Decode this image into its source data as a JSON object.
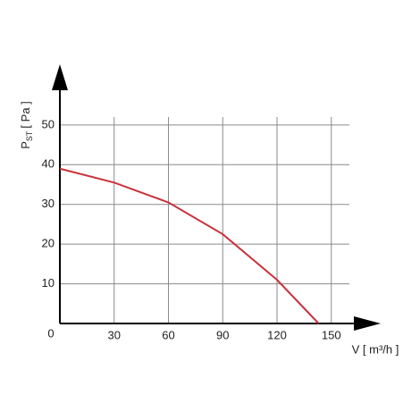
{
  "chart_data": {
    "type": "line",
    "x_label": "V [ m³/h ]",
    "y_label": {
      "symbol": "P",
      "subscript": "ST",
      "unit": "[ Pa ]"
    },
    "x": [
      0,
      30,
      60,
      90,
      120,
      143
    ],
    "series": [
      {
        "color": "#c8323c",
        "values": [
          39,
          35.5,
          30.5,
          22.5,
          11,
          0
        ]
      }
    ],
    "xlim": [
      0,
      160
    ],
    "ylim": [
      0,
      52
    ],
    "xticks": [
      0,
      30,
      60,
      90,
      120,
      150
    ],
    "yticks": [
      10,
      20,
      30,
      40,
      50
    ],
    "grid": true
  }
}
